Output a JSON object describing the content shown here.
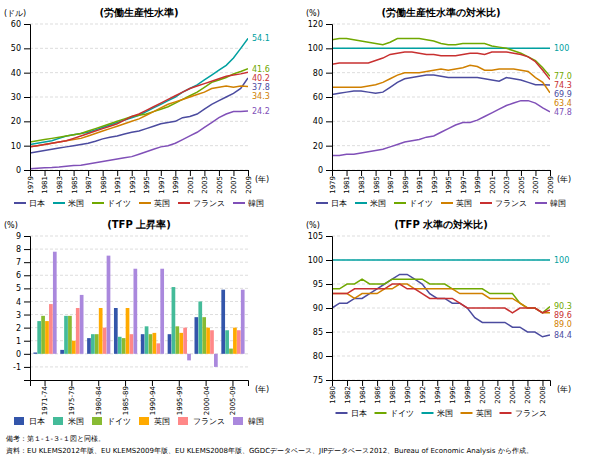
{
  "chart_data": [
    {
      "type": "line",
      "title": "(労働生産性水準)",
      "xlabel": "(年)",
      "ylabel": "(ドル)",
      "x": [
        1979,
        1980,
        1981,
        1982,
        1983,
        1984,
        1985,
        1986,
        1987,
        1988,
        1989,
        1990,
        1991,
        1992,
        1993,
        1994,
        1995,
        1996,
        1997,
        1998,
        1999,
        2000,
        2001,
        2002,
        2003,
        2004,
        2005,
        2006,
        2007,
        2008,
        2009
      ],
      "xlim": [
        1979,
        2009
      ],
      "xticks": [
        1979,
        1981,
        1983,
        1985,
        1987,
        1989,
        1991,
        1993,
        1995,
        1997,
        1999,
        2001,
        2003,
        2005,
        2007,
        2009
      ],
      "ylim": [
        0,
        60
      ],
      "yticks": [
        0,
        10,
        20,
        30,
        40,
        50,
        60
      ],
      "grid": "y",
      "legend": "bottom",
      "series": [
        {
          "name": "日本",
          "color": "#4b4b9f",
          "values": [
            7.0,
            7.5,
            8.0,
            8.5,
            9.0,
            9.5,
            10.0,
            10.5,
            11.0,
            11.8,
            12.8,
            13.5,
            14.0,
            14.8,
            15.5,
            16.0,
            17.0,
            18.0,
            19.0,
            19.5,
            20.0,
            21.5,
            22.0,
            23.0,
            25.0,
            27.0,
            28.5,
            30.0,
            31.5,
            33.5,
            37.8
          ]
        },
        {
          "name": "米国",
          "color": "#00a0a0",
          "values": [
            10.5,
            11.0,
            11.5,
            12.0,
            13.0,
            14.0,
            14.5,
            15.0,
            15.5,
            16.5,
            17.5,
            18.5,
            19.5,
            20.5,
            21.5,
            22.5,
            24.0,
            25.5,
            27.0,
            28.5,
            30.0,
            32.0,
            33.5,
            35.0,
            37.0,
            39.0,
            41.0,
            43.0,
            46.0,
            50.0,
            54.1
          ]
        },
        {
          "name": "ドイツ",
          "color": "#70a800",
          "values": [
            11.5,
            12.0,
            12.5,
            13.0,
            13.5,
            14.0,
            14.5,
            15.0,
            16.0,
            17.0,
            18.0,
            19.0,
            20.0,
            21.0,
            22.0,
            22.5,
            23.0,
            24.0,
            25.0,
            26.0,
            27.5,
            29.0,
            30.5,
            32.0,
            34.0,
            36.0,
            37.0,
            38.0,
            39.5,
            40.5,
            41.6
          ]
        },
        {
          "name": "英国",
          "color": "#d08000",
          "values": [
            9.5,
            10.0,
            10.5,
            11.0,
            11.5,
            12.0,
            12.5,
            13.0,
            14.0,
            15.0,
            16.0,
            17.0,
            18.0,
            19.0,
            20.0,
            21.0,
            22.5,
            24.0,
            25.5,
            27.0,
            28.0,
            29.0,
            30.0,
            31.0,
            32.0,
            33.5,
            34.0,
            34.5,
            34.0,
            34.5,
            34.3
          ]
        },
        {
          "name": "フランス",
          "color": "#c83030",
          "values": [
            9.5,
            10.0,
            10.5,
            11.0,
            11.5,
            12.0,
            13.0,
            14.0,
            15.0,
            16.0,
            17.0,
            18.0,
            19.0,
            20.5,
            22.0,
            23.0,
            24.5,
            26.0,
            27.5,
            29.0,
            30.5,
            32.0,
            33.5,
            34.5,
            35.5,
            36.5,
            37.5,
            38.5,
            39.0,
            39.5,
            40.2
          ]
        },
        {
          "name": "韓国",
          "color": "#8050b8",
          "values": [
            0.5,
            0.7,
            0.9,
            1.0,
            1.2,
            1.5,
            1.8,
            2.0,
            2.5,
            3.0,
            3.5,
            4.0,
            4.5,
            5.0,
            5.5,
            6.5,
            7.5,
            8.5,
            9.5,
            10.0,
            11.0,
            12.5,
            14.0,
            15.5,
            17.5,
            19.5,
            21.5,
            23.0,
            24.0,
            24.0,
            24.2
          ]
        }
      ],
      "annotations": [
        {
          "text": "37.8",
          "x": 2009,
          "y": 37.8,
          "color": "#4b4b9f"
        },
        {
          "text": "54.1",
          "x": 2009,
          "y": 54.1,
          "color": "#00a0a0"
        },
        {
          "text": "41.6",
          "x": 2009,
          "y": 41.6,
          "color": "#70a800"
        },
        {
          "text": "34.3",
          "x": 2009,
          "y": 34.3,
          "color": "#d08000"
        },
        {
          "text": "40.2",
          "x": 2009,
          "y": 40.2,
          "color": "#c83030"
        },
        {
          "text": "24.2",
          "x": 2009,
          "y": 24.2,
          "color": "#8050b8"
        }
      ]
    },
    {
      "type": "line",
      "title": "(労働生産性水準の対米比)",
      "xlabel": "(年)",
      "ylabel": "(%)",
      "x": [
        1979,
        1980,
        1981,
        1982,
        1983,
        1984,
        1985,
        1986,
        1987,
        1988,
        1989,
        1990,
        1991,
        1992,
        1993,
        1994,
        1995,
        1996,
        1997,
        1998,
        1999,
        2000,
        2001,
        2002,
        2003,
        2004,
        2005,
        2006,
        2007,
        2008,
        2009
      ],
      "xlim": [
        1979,
        2009
      ],
      "xticks": [
        1979,
        1981,
        1983,
        1985,
        1987,
        1989,
        1991,
        1993,
        1995,
        1997,
        1999,
        2001,
        2003,
        2005,
        2007,
        2009
      ],
      "ylim": [
        0,
        120
      ],
      "yticks": [
        0,
        20,
        40,
        60,
        80,
        100,
        120
      ],
      "grid": "y",
      "legend": "bottom",
      "series": [
        {
          "name": "日本",
          "color": "#4b4b9f",
          "values": [
            62,
            63,
            64,
            65,
            65,
            64,
            63,
            64,
            68,
            72,
            75,
            76,
            77,
            78,
            78,
            77,
            76,
            76,
            76,
            76,
            76,
            75,
            74,
            73,
            76,
            75,
            74,
            72,
            70,
            70,
            69.9
          ]
        },
        {
          "name": "米国",
          "color": "#00a0a0",
          "values": [
            100,
            100,
            100,
            100,
            100,
            100,
            100,
            100,
            100,
            100,
            100,
            100,
            100,
            100,
            100,
            100,
            100,
            100,
            100,
            100,
            100,
            100,
            100,
            100,
            100,
            100,
            100,
            100,
            100,
            100,
            100
          ]
        },
        {
          "name": "ドイツ",
          "color": "#70a800",
          "values": [
            107,
            108,
            108,
            107,
            106,
            105,
            104,
            103,
            105,
            108,
            108,
            108,
            108,
            107,
            106,
            104,
            103,
            103,
            104,
            104,
            104,
            104,
            102,
            101,
            100,
            98,
            96,
            93,
            90,
            84,
            77.0
          ]
        },
        {
          "name": "英国",
          "color": "#d08000",
          "values": [
            68,
            68,
            68,
            68,
            68,
            69,
            70,
            72,
            75,
            78,
            80,
            80,
            80,
            81,
            82,
            83,
            82,
            83,
            84,
            86,
            85,
            82,
            82,
            83,
            83,
            83,
            82,
            81,
            76,
            72,
            63.4
          ]
        },
        {
          "name": "フランス",
          "color": "#c83030",
          "values": [
            87,
            88,
            88,
            88,
            88,
            88,
            90,
            92,
            95,
            96,
            97,
            97,
            96,
            95,
            95,
            94,
            94,
            94,
            95,
            96,
            96,
            95,
            97,
            97,
            97,
            96,
            95,
            93,
            89,
            82,
            74.3
          ]
        },
        {
          "name": "韓国",
          "color": "#8050b8",
          "values": [
            12,
            12,
            13,
            13,
            14,
            15,
            16,
            17,
            19,
            21,
            23,
            24,
            25,
            27,
            28,
            31,
            34,
            37,
            39,
            39,
            41,
            44,
            47,
            50,
            53,
            55,
            57,
            57,
            55,
            51,
            47.8
          ]
        }
      ],
      "annotations": [
        {
          "text": "69.9",
          "x": 2009,
          "y": 69.9,
          "color": "#4b4b9f"
        },
        {
          "text": "100",
          "x": 2009,
          "y": 100,
          "color": "#00a0a0"
        },
        {
          "text": "77.0",
          "x": 2009,
          "y": 77.0,
          "color": "#70a800"
        },
        {
          "text": "63.4",
          "x": 2009,
          "y": 63.4,
          "color": "#d08000"
        },
        {
          "text": "74.3",
          "x": 2009,
          "y": 74.3,
          "color": "#c83030"
        },
        {
          "text": "47.8",
          "x": 2009,
          "y": 47.8,
          "color": "#8050b8"
        }
      ]
    },
    {
      "type": "bar",
      "title": "(TFP 上昇率)",
      "xlabel": "(年)",
      "ylabel": "(%)",
      "categories": [
        "1971-74",
        "1975-79",
        "1980-84",
        "1985-89",
        "1990-94",
        "1995-99",
        "2000-04",
        "2005-09"
      ],
      "ylim": [
        -2,
        9
      ],
      "yticks": [
        -1,
        0,
        1,
        2,
        3,
        4,
        5,
        6,
        7,
        8,
        9
      ],
      "grid": "y",
      "legend": "bottom",
      "series": [
        {
          "name": "日本",
          "color": "#3355aa",
          "values": [
            0.1,
            0.3,
            1.2,
            3.5,
            1.5,
            1.5,
            2.8,
            4.9
          ]
        },
        {
          "name": "米国",
          "color": "#44bb99",
          "values": [
            2.5,
            2.9,
            1.5,
            1.3,
            2.1,
            5.1,
            4.0,
            1.8
          ]
        },
        {
          "name": "ドイツ",
          "color": "#88bb33",
          "values": [
            2.9,
            2.9,
            1.5,
            1.2,
            1.5,
            2.1,
            2.8,
            0.4
          ]
        },
        {
          "name": "英国",
          "color": "#ffaa00",
          "values": [
            2.5,
            1.0,
            3.5,
            3.5,
            1.6,
            1.6,
            2.0,
            2.0
          ]
        },
        {
          "name": "フランス",
          "color": "#ff8888",
          "values": [
            3.8,
            3.5,
            2.0,
            1.5,
            0.8,
            2.0,
            1.8,
            1.8
          ]
        },
        {
          "name": "韓国",
          "color": "#aa88dd",
          "values": [
            7.8,
            4.5,
            7.5,
            6.5,
            6.5,
            -0.5,
            -1.0,
            4.9
          ]
        }
      ]
    },
    {
      "type": "line",
      "title": "(TFP 水準の対米比)",
      "xlabel": "(年)",
      "ylabel": "(%)",
      "x": [
        1980,
        1981,
        1982,
        1983,
        1984,
        1985,
        1986,
        1987,
        1988,
        1989,
        1990,
        1991,
        1992,
        1993,
        1994,
        1995,
        1996,
        1997,
        1998,
        1999,
        2000,
        2001,
        2002,
        2003,
        2004,
        2005,
        2006,
        2007,
        2008,
        2009
      ],
      "xlim": [
        1980,
        2009
      ],
      "xticks": [
        1980,
        1982,
        1984,
        1986,
        1988,
        1990,
        1992,
        1994,
        1996,
        1998,
        2000,
        2002,
        2004,
        2006,
        2008
      ],
      "ylim": [
        75,
        105
      ],
      "yticks": [
        75,
        80,
        85,
        90,
        95,
        100,
        105
      ],
      "grid": "y",
      "legend": "bottom",
      "series": [
        {
          "name": "日本",
          "color": "#4b4b9f",
          "values": [
            90,
            91,
            91,
            92,
            92,
            93,
            94,
            95,
            96,
            97,
            97,
            96,
            95,
            93,
            92,
            92,
            91,
            91,
            90,
            88,
            87,
            87,
            87,
            87,
            86,
            86,
            85,
            85,
            84,
            84.4
          ]
        },
        {
          "name": "ドイツ",
          "color": "#70a800",
          "values": [
            94,
            94,
            95,
            95,
            96,
            95,
            95,
            95,
            96,
            96,
            96,
            96,
            96,
            95,
            95,
            95,
            94,
            94,
            94,
            94,
            94,
            93,
            93,
            93,
            93,
            91,
            90,
            90,
            89,
            90.3
          ]
        },
        {
          "name": "米国",
          "color": "#00a0a0",
          "values": [
            100,
            100,
            100,
            100,
            100,
            100,
            100,
            100,
            100,
            100,
            100,
            100,
            100,
            100,
            100,
            100,
            100,
            100,
            100,
            100,
            100,
            100,
            100,
            100,
            100,
            100,
            100,
            100,
            100,
            100
          ]
        },
        {
          "name": "英国",
          "color": "#d08000",
          "values": [
            93,
            93,
            93,
            92,
            93,
            93,
            93,
            94,
            94,
            95,
            95,
            94,
            94,
            94,
            94,
            94,
            94,
            93,
            93,
            93,
            93,
            92,
            92,
            92,
            92,
            91,
            90,
            90,
            89,
            89.0
          ]
        },
        {
          "name": "フランス",
          "color": "#c83030",
          "values": [
            93,
            93,
            93,
            94,
            94,
            94,
            94,
            94,
            95,
            95,
            94,
            94,
            93,
            92,
            92,
            92,
            92,
            91,
            90,
            90,
            90,
            90,
            90,
            90,
            89,
            90,
            90,
            90,
            89,
            89.6
          ]
        }
      ],
      "annotations": [
        {
          "text": "84.4",
          "x": 2009,
          "y": 84.4,
          "color": "#4b4b9f"
        },
        {
          "text": "100",
          "x": 2009,
          "y": 100,
          "color": "#00a0a0"
        },
        {
          "text": "90.3",
          "x": 2009,
          "y": 90.3,
          "color": "#70a800"
        },
        {
          "text": "89.0",
          "x": 2009,
          "y": 89.0,
          "color": "#d08000"
        },
        {
          "text": "89.6",
          "x": 2009,
          "y": 89.6,
          "color": "#c83030"
        }
      ]
    }
  ],
  "annotations": [
    {
      "text": "備考：第１-１-３-１図と同様。"
    },
    {
      "text": "資料：EU KLEMS2012年版、EU KLEMS2009年版、EU KLEMS2008年版、GGDCデータベース、JIPデータベース2012、Bureau of Economic Analysis から作成。"
    }
  ]
}
